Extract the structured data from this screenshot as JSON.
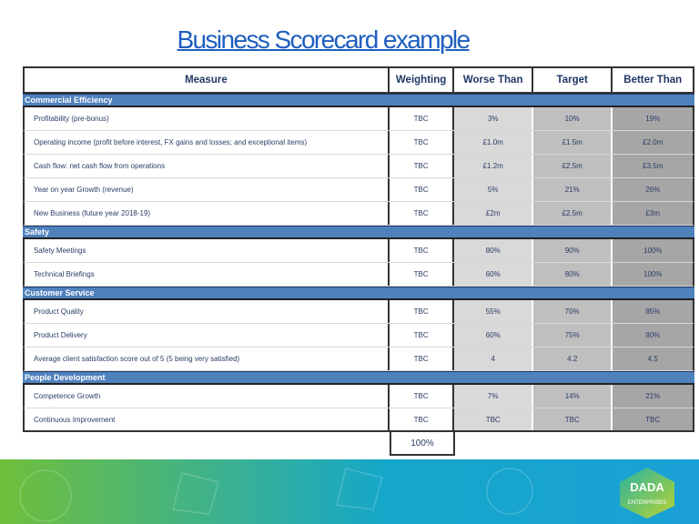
{
  "title": "Business Scorecard example",
  "columns": [
    "Measure",
    "Weighting",
    "Worse Than",
    "Target",
    "Better Than"
  ],
  "sections": [
    {
      "name": "Commercial Efficiency",
      "rows": [
        [
          "Profitability (pre-bonus)",
          "TBC",
          "3%",
          "10%",
          "19%"
        ],
        [
          "Operating income (profit before interest, FX gains and losses; and exceptional items)",
          "TBC",
          "£1.0m",
          "£1.5m",
          "£2.0m"
        ],
        [
          "Cash flow: net cash flow from operations",
          "TBC",
          "£1.2m",
          "£2.5m",
          "£3.5m"
        ],
        [
          "Year on year Growth (revenue)",
          "TBC",
          "5%",
          "21%",
          "26%"
        ],
        [
          "New Business (future year  2018-19)",
          "TBC",
          "£2m",
          "£2.5m",
          "£3m"
        ]
      ]
    },
    {
      "name": "Safety",
      "rows": [
        [
          "Safety Meetings",
          "TBC",
          "80%",
          "90%",
          "100%"
        ],
        [
          "Technical Briefings",
          "TBC",
          "60%",
          "80%",
          "100%"
        ]
      ]
    },
    {
      "name": "Customer Service",
      "rows": [
        [
          "Product Quality",
          "TBC",
          "55%",
          "70%",
          "85%"
        ],
        [
          "Product Delivery",
          "TBC",
          "60%",
          "75%",
          "90%"
        ],
        [
          "Average client satisfaction score out of 5 (5 being very satisfied)",
          "TBC",
          "4",
          "4.2",
          "4.5"
        ]
      ]
    },
    {
      "name": "People Development",
      "rows": [
        [
          "Competence Growth",
          "TBC",
          "7%",
          "14%",
          "21%"
        ],
        [
          "Continuous Improvement",
          "TBC",
          "TBC",
          "TBC",
          "TBC"
        ]
      ]
    }
  ],
  "total_weighting": "100%",
  "logo": {
    "text": "DADA",
    "subtext": "ENTERPRISES"
  },
  "colors": {
    "title": "#1f5fbf",
    "section_bar": "#4f81bd",
    "worse": "#d9d9d9",
    "target": "#bfbfbf",
    "better": "#a6a6a6"
  }
}
